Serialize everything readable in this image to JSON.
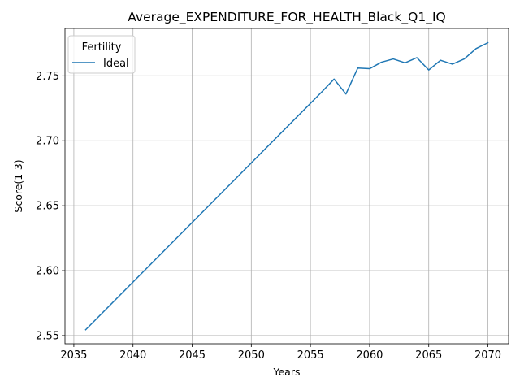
{
  "chart_data": {
    "type": "line",
    "title": "Average_EXPENDITURE_FOR_HEALTH_Black_Q1_IQ",
    "xlabel": "Years",
    "ylabel": "Score(1-3)",
    "xlim": [
      2034.25,
      2071.75
    ],
    "ylim": [
      2.5437,
      2.7865
    ],
    "xticks": [
      2035,
      2040,
      2045,
      2050,
      2055,
      2060,
      2065,
      2070
    ],
    "yticks": [
      2.55,
      2.6,
      2.65,
      2.7,
      2.75
    ],
    "xtick_labels": [
      "2035",
      "2040",
      "2045",
      "2050",
      "2055",
      "2060",
      "2065",
      "2070"
    ],
    "ytick_labels": [
      "2.55",
      "2.60",
      "2.65",
      "2.70",
      "2.75"
    ],
    "grid": true,
    "legend": {
      "title": "Fertility",
      "position": "top-left"
    },
    "series": [
      {
        "name": "Ideal",
        "color": "#1f77b4",
        "x": [
          2036,
          2056,
          2057,
          2058,
          2059,
          2060,
          2061,
          2062,
          2063,
          2064,
          2065,
          2066,
          2067,
          2068,
          2069,
          2070
        ],
        "y": [
          2.5545,
          2.738,
          2.7475,
          2.736,
          2.756,
          2.7555,
          2.7605,
          2.763,
          2.76,
          2.764,
          2.7545,
          2.762,
          2.759,
          2.763,
          2.771,
          2.7755
        ]
      }
    ]
  }
}
